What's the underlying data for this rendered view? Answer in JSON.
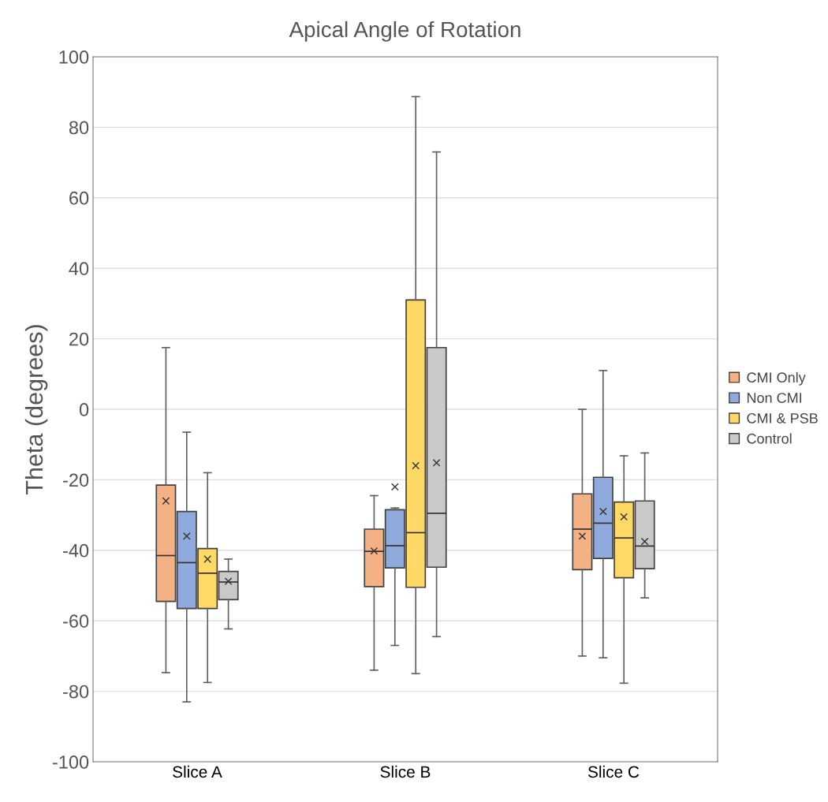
{
  "chart_data": {
    "type": "box",
    "title": "Apical Angle of Rotation",
    "ylabel": "Theta (degrees)",
    "categories": [
      "Slice A",
      "Slice B",
      "Slice C"
    ],
    "ylim": [
      -100,
      100
    ],
    "yticks": [
      -100,
      -80,
      -60,
      -40,
      -20,
      0,
      20,
      40,
      60,
      80,
      100
    ],
    "grid": "y",
    "legend": "right",
    "series": [
      {
        "name": "CMI Only",
        "color": "#f4b183",
        "boxes": [
          {
            "low": -74.7,
            "q1": -54.5,
            "median": -41.5,
            "q3": -21.5,
            "high": 17.5,
            "mean": -26
          },
          {
            "low": -74,
            "q1": -50.3,
            "median": -40.3,
            "q3": -34,
            "high": -24.5,
            "mean": -40.2
          },
          {
            "low": -70,
            "q1": -45.5,
            "median": -34,
            "q3": -24,
            "high": 0,
            "mean": -36
          }
        ]
      },
      {
        "name": "Non CMI",
        "color": "#8faadc",
        "boxes": [
          {
            "low": -83,
            "q1": -56.5,
            "median": -43.5,
            "q3": -29,
            "high": -6.5,
            "mean": -36
          },
          {
            "low": -67,
            "q1": -45,
            "median": -38.7,
            "q3": -28.5,
            "high": -28,
            "mean": -22
          },
          {
            "low": -70.5,
            "q1": -42.3,
            "median": -32.3,
            "q3": -19.3,
            "high": 11,
            "mean": -29
          }
        ]
      },
      {
        "name": "CMI & PSB",
        "color": "#ffd966",
        "boxes": [
          {
            "low": -77.5,
            "q1": -56.5,
            "median": -46.5,
            "q3": -39.5,
            "high": -18,
            "mean": -42.5
          },
          {
            "low": -75,
            "q1": -50.5,
            "median": -35,
            "q3": 31,
            "high": 88.7,
            "mean": -16
          },
          {
            "low": -77.7,
            "q1": -47.8,
            "median": -36.5,
            "q3": -26.3,
            "high": -13.2,
            "mean": -30.5
          }
        ]
      },
      {
        "name": "Control",
        "color": "#c9c9c9",
        "boxes": [
          {
            "low": -62.3,
            "q1": -54,
            "median": -49,
            "q3": -46,
            "high": -42.5,
            "mean": -48.8
          },
          {
            "low": -64.5,
            "q1": -44.8,
            "median": -29.5,
            "q3": 17.5,
            "high": 73,
            "mean": -15.2
          },
          {
            "low": -53.5,
            "q1": -45.2,
            "median": -38.8,
            "q3": -26,
            "high": -12.4,
            "mean": -37.5
          }
        ]
      }
    ]
  }
}
